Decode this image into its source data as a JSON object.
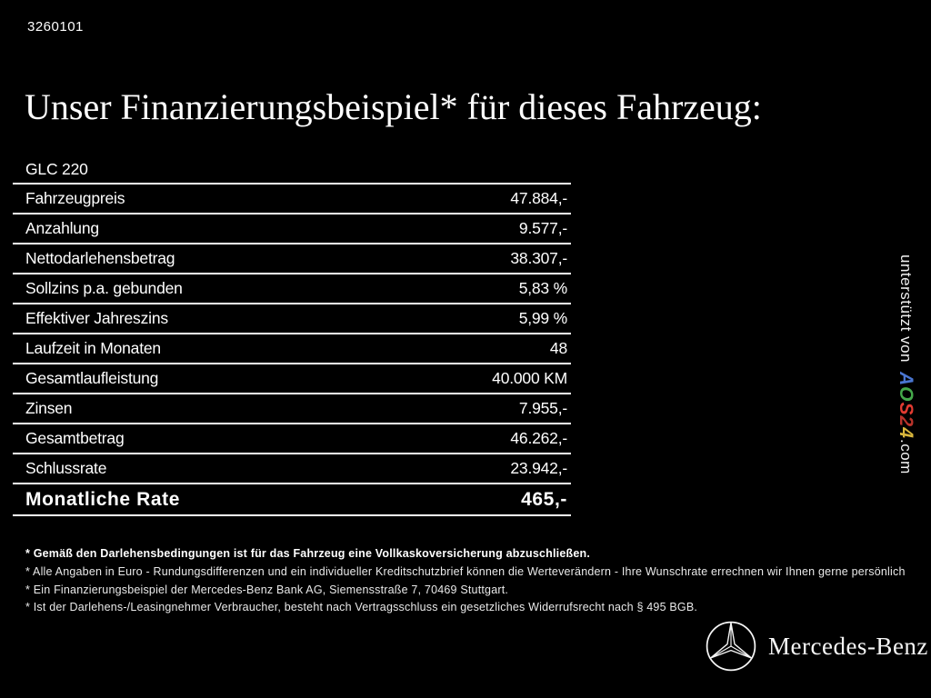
{
  "page": {
    "ref_number": "3260101",
    "title": "Unser Finanzierungsbeispiel* für dieses Fahrzeug:"
  },
  "finance_table": {
    "model": "GLC 220",
    "rows": [
      {
        "label": "Fahrzeugpreis",
        "value": "47.884,-"
      },
      {
        "label": "Anzahlung",
        "value": "9.577,-"
      },
      {
        "label": "Nettodarlehensbetrag",
        "value": "38.307,-"
      },
      {
        "label": "Sollzins p.a. gebunden",
        "value": "5,83 %"
      },
      {
        "label": "Effektiver Jahreszins",
        "value": "5,99 %"
      },
      {
        "label": "Laufzeit in Monaten",
        "value": "48"
      },
      {
        "label": "Gesamtlaufleistung",
        "value": "40.000 KM"
      },
      {
        "label": "Zinsen",
        "value": "7.955,-"
      },
      {
        "label": "Gesamtbetrag",
        "value": "46.262,-"
      },
      {
        "label": "Schlussrate",
        "value": "23.942,-"
      },
      {
        "label": "Monatliche Rate",
        "value": "465,-",
        "emphasis": true
      }
    ]
  },
  "footnotes": [
    {
      "text": "* Gemäß den Darlehensbedingungen ist für das Fahrzeug eine Vollkaskoversicherung abzuschließen.",
      "bold": true
    },
    {
      "text": "* Alle Angaben in Euro - Rundungsdifferenzen und ein individueller Kreditschutzbrief können die Werteverändern - Ihre Wunschrate errechnen wir Ihnen gerne persönlich",
      "bold": false
    },
    {
      "text": "* Ein Finanzierungsbeispiel der Mercedes-Benz Bank AG, Siemensstraße 7, 70469 Stuttgart.",
      "bold": false
    },
    {
      "text": "* Ist der Darlehens-/Leasingnehmer Verbraucher, besteht nach Vertragsschluss ein gesetzliches Widerrufsrecht nach § 495 BGB.",
      "bold": false
    }
  ],
  "sponsor": {
    "prefix": "unterstützt von",
    "brand_letters": [
      {
        "ch": "A",
        "color": "#4a76d2"
      },
      {
        "ch": "O",
        "color": "#45a94b"
      },
      {
        "ch": "S",
        "color": "#e23b31"
      },
      {
        "ch": "2",
        "color": "#b8332b"
      },
      {
        "ch": "4",
        "color": "#d8b63c"
      }
    ],
    "suffix": ".com"
  },
  "footer": {
    "wordmark": "Mercedes-Benz"
  },
  "colors": {
    "background": "#000000",
    "text": "#ffffff",
    "rule": "#ffffff"
  }
}
